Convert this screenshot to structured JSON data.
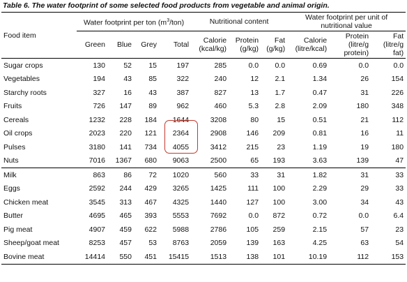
{
  "caption": "Table 6. The water footprint of some selected food products from vegetable and animal origin.",
  "headers": {
    "food_item": "Food item",
    "group_wf": "Water footprint per ton (m³/ton)",
    "group_nut": "Nutritional content",
    "group_wfu": "Water footprint per unit of nutritional value",
    "green": "Green",
    "blue": "Blue",
    "grey": "Grey",
    "total": "Total",
    "calorie": "Calorie (kcal/kg)",
    "protein": "Protein (g/kg)",
    "fat": "Fat (g/kg)",
    "calorie_u": "Calorie (litre/kcal)",
    "protein_u": "Protein (litre/g protein)",
    "fat_u": "Fat (litre/g fat)"
  },
  "rows": [
    [
      "Sugar crops",
      "130",
      "52",
      "15",
      "197",
      "285",
      "0.0",
      "0.0",
      "0.69",
      "0.0",
      "0.0"
    ],
    [
      "Vegetables",
      "194",
      "43",
      "85",
      "322",
      "240",
      "12",
      "2.1",
      "1.34",
      "26",
      "154"
    ],
    [
      "Starchy roots",
      "327",
      "16",
      "43",
      "387",
      "827",
      "13",
      "1.7",
      "0.47",
      "31",
      "226"
    ],
    [
      "Fruits",
      "726",
      "147",
      "89",
      "962",
      "460",
      "5.3",
      "2.8",
      "2.09",
      "180",
      "348"
    ],
    [
      "Cereals",
      "1232",
      "228",
      "184",
      "1644",
      "3208",
      "80",
      "15",
      "0.51",
      "21",
      "112"
    ],
    [
      "Oil crops",
      "2023",
      "220",
      "121",
      "2364",
      "2908",
      "146",
      "209",
      "0.81",
      "16",
      "11"
    ],
    [
      "Pulses",
      "3180",
      "141",
      "734",
      "4055",
      "3412",
      "215",
      "23",
      "1.19",
      "19",
      "180"
    ],
    [
      "Nuts",
      "7016",
      "1367",
      "680",
      "9063",
      "2500",
      "65",
      "193",
      "3.63",
      "139",
      "47"
    ],
    [
      "Milk",
      "863",
      "86",
      "72",
      "1020",
      "560",
      "33",
      "31",
      "1.82",
      "31",
      "33"
    ],
    [
      "Eggs",
      "2592",
      "244",
      "429",
      "3265",
      "1425",
      "111",
      "100",
      "2.29",
      "29",
      "33"
    ],
    [
      "Chicken meat",
      "3545",
      "313",
      "467",
      "4325",
      "1440",
      "127",
      "100",
      "3.00",
      "34",
      "43"
    ],
    [
      "Butter",
      "4695",
      "465",
      "393",
      "5553",
      "7692",
      "0.0",
      "872",
      "0.72",
      "0.0",
      "6.4"
    ],
    [
      "Pig meat",
      "4907",
      "459",
      "622",
      "5988",
      "2786",
      "105",
      "259",
      "2.15",
      "57",
      "23"
    ],
    [
      "Sheep/goat meat",
      "8253",
      "457",
      "53",
      "8763",
      "2059",
      "139",
      "163",
      "4.25",
      "63",
      "54"
    ],
    [
      "Bovine meat",
      "14414",
      "550",
      "451",
      "15415",
      "1513",
      "138",
      "101",
      "10.19",
      "112",
      "153"
    ]
  ]
}
